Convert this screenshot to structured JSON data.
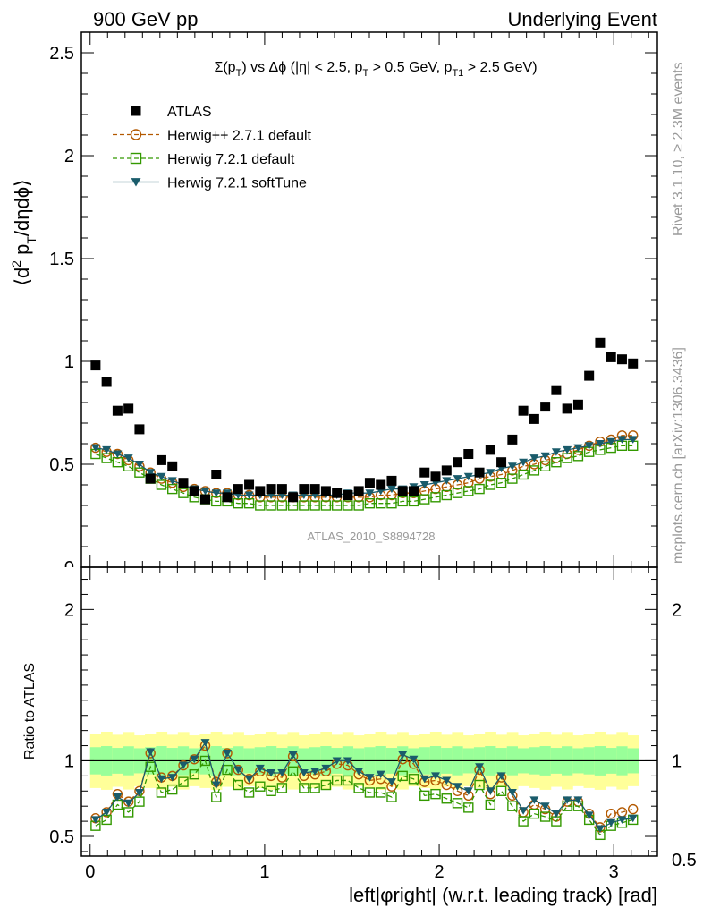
{
  "header": {
    "left": "900 GeV pp",
    "right": "Underlying Event"
  },
  "side": {
    "rivet": "Rivet 3.1.10, ≥ 2.3M events",
    "mcplots": "mcplots.cern.ch [arXiv:1306.3436]"
  },
  "chart_data": [
    {
      "type": "scatter",
      "title": "Σ(p_T) vs Δφ (|η| < 2.5, p_T > 0.5 GeV, p_T1 > 2.5 GeV)",
      "ylabel": "⟨d² p_T/dηdφ⟩",
      "watermark": "ATLAS_2010_S8894728",
      "ylim": [
        0,
        2.6
      ],
      "xlim": [
        -0.05,
        3.25
      ],
      "yticks": [
        0.5,
        1,
        1.5,
        2,
        2.5
      ],
      "ytick_labels": [
        "0.5",
        "1",
        "1.5",
        "2",
        "2.5"
      ],
      "legend_position": "top-left",
      "x": [
        0.0314,
        0.0942,
        0.157,
        0.2199,
        0.2827,
        0.3456,
        0.4084,
        0.4712,
        0.5341,
        0.5969,
        0.6597,
        0.7226,
        0.7854,
        0.8482,
        0.9111,
        0.9739,
        1.0367,
        1.0996,
        1.1624,
        1.2252,
        1.2881,
        1.3509,
        1.4137,
        1.4766,
        1.5394,
        1.6022,
        1.6651,
        1.7279,
        1.7907,
        1.8536,
        1.9164,
        1.9792,
        2.0421,
        2.1049,
        2.1677,
        2.2306,
        2.2934,
        2.3562,
        2.4191,
        2.4819,
        2.5447,
        2.6076,
        2.6704,
        2.7332,
        2.7961,
        2.8589,
        2.9217,
        2.9846,
        3.0474,
        3.1102
      ],
      "series": [
        {
          "name": "ATLAS",
          "marker": "square-filled",
          "color": "#000000",
          "values": [
            0.98,
            0.9,
            0.76,
            0.77,
            0.67,
            0.43,
            0.52,
            0.49,
            0.41,
            0.37,
            0.33,
            0.45,
            0.34,
            0.38,
            0.4,
            0.37,
            0.38,
            0.38,
            0.34,
            0.38,
            0.38,
            0.37,
            0.36,
            0.35,
            0.37,
            0.41,
            0.4,
            0.42,
            0.37,
            0.37,
            0.46,
            0.44,
            0.47,
            0.51,
            0.55,
            0.46,
            0.57,
            0.51,
            0.62,
            0.76,
            0.72,
            0.78,
            0.86,
            0.77,
            0.79,
            0.93,
            1.09,
            1.02,
            1.01,
            0.99
          ]
        },
        {
          "name": "Herwig++ 2.7.1 default",
          "marker": "circle-open",
          "line": "dashed",
          "color": "#b35900",
          "values": [
            0.58,
            0.56,
            0.55,
            0.52,
            0.49,
            0.46,
            0.43,
            0.41,
            0.39,
            0.38,
            0.37,
            0.36,
            0.36,
            0.35,
            0.35,
            0.34,
            0.34,
            0.34,
            0.34,
            0.34,
            0.34,
            0.34,
            0.34,
            0.34,
            0.34,
            0.34,
            0.35,
            0.35,
            0.36,
            0.36,
            0.37,
            0.38,
            0.39,
            0.4,
            0.41,
            0.43,
            0.44,
            0.45,
            0.47,
            0.49,
            0.5,
            0.52,
            0.53,
            0.55,
            0.57,
            0.59,
            0.61,
            0.62,
            0.64,
            0.64
          ]
        },
        {
          "name": "Herwig 7.2.1 default",
          "marker": "square-open",
          "line": "dashed",
          "color": "#339900",
          "values": [
            0.55,
            0.53,
            0.51,
            0.49,
            0.46,
            0.43,
            0.4,
            0.38,
            0.36,
            0.34,
            0.33,
            0.32,
            0.32,
            0.31,
            0.31,
            0.3,
            0.3,
            0.3,
            0.3,
            0.3,
            0.3,
            0.3,
            0.3,
            0.3,
            0.3,
            0.31,
            0.31,
            0.31,
            0.32,
            0.32,
            0.33,
            0.34,
            0.35,
            0.36,
            0.37,
            0.38,
            0.4,
            0.41,
            0.43,
            0.45,
            0.47,
            0.49,
            0.51,
            0.53,
            0.54,
            0.56,
            0.57,
            0.58,
            0.59,
            0.59
          ]
        },
        {
          "name": "Herwig 7.2.1 softTune",
          "marker": "triangle-down-filled",
          "line": "solid",
          "color": "#1a5c6b",
          "values": [
            0.58,
            0.57,
            0.55,
            0.53,
            0.5,
            0.46,
            0.44,
            0.42,
            0.4,
            0.38,
            0.37,
            0.36,
            0.36,
            0.35,
            0.35,
            0.35,
            0.35,
            0.35,
            0.35,
            0.35,
            0.35,
            0.35,
            0.35,
            0.36,
            0.36,
            0.36,
            0.37,
            0.38,
            0.38,
            0.39,
            0.4,
            0.41,
            0.42,
            0.43,
            0.44,
            0.45,
            0.46,
            0.48,
            0.49,
            0.51,
            0.53,
            0.54,
            0.56,
            0.57,
            0.58,
            0.59,
            0.6,
            0.61,
            0.62,
            0.62
          ]
        }
      ]
    },
    {
      "type": "scatter",
      "ylabel": "Ratio to ATLAS",
      "xlabel": "left|φright| (w.r.t. leading track) [rad]",
      "ylim": [
        0.37,
        2.28
      ],
      "xlim": [
        -0.05,
        3.25
      ],
      "yticks": [
        0.5,
        1,
        2
      ],
      "ytick_labels": [
        "0.5",
        "1",
        "2"
      ],
      "xticks": [
        0,
        1,
        2,
        3
      ],
      "xtick_labels": [
        "0",
        "1",
        "2",
        "3"
      ],
      "band_inner": 0.09,
      "band_outer": 0.18,
      "band_inner_color": "#99ff99",
      "band_outer_color": "#ffff99",
      "reference": 1,
      "x": [
        0.0314,
        0.0942,
        0.157,
        0.2199,
        0.2827,
        0.3456,
        0.4084,
        0.4712,
        0.5341,
        0.5969,
        0.6597,
        0.7226,
        0.7854,
        0.8482,
        0.9111,
        0.9739,
        1.0367,
        1.0996,
        1.1624,
        1.2252,
        1.2881,
        1.3509,
        1.4137,
        1.4766,
        1.5394,
        1.6022,
        1.6651,
        1.7279,
        1.7907,
        1.8536,
        1.9164,
        1.9792,
        2.0421,
        2.1049,
        2.1677,
        2.2306,
        2.2934,
        2.3562,
        2.4191,
        2.4819,
        2.5447,
        2.6076,
        2.6704,
        2.7332,
        2.7961,
        2.8589,
        2.9217,
        2.9846,
        3.0474,
        3.1102
      ],
      "series": [
        {
          "name": "Herwig++ 2.7.1 default",
          "color": "#b35900",
          "values": [
            0.62,
            0.66,
            0.78,
            0.73,
            0.8,
            1.05,
            0.89,
            0.9,
            0.97,
            1.01,
            1.1,
            0.86,
            1.05,
            0.94,
            0.88,
            0.93,
            0.9,
            0.89,
            1.03,
            0.9,
            0.91,
            0.93,
            0.98,
            0.97,
            0.91,
            0.87,
            0.88,
            0.83,
            1.01,
            0.98,
            0.86,
            0.87,
            0.84,
            0.8,
            0.77,
            0.94,
            0.78,
            0.89,
            0.77,
            0.66,
            0.71,
            0.68,
            0.63,
            0.73,
            0.73,
            0.65,
            0.56,
            0.65,
            0.66,
            0.68
          ]
        },
        {
          "name": "Herwig 7.2.1 default",
          "color": "#339900",
          "values": [
            0.57,
            0.61,
            0.71,
            0.66,
            0.73,
            0.96,
            0.79,
            0.81,
            0.86,
            0.91,
            1.0,
            0.76,
            0.94,
            0.84,
            0.79,
            0.83,
            0.8,
            0.82,
            0.93,
            0.82,
            0.82,
            0.84,
            0.87,
            0.87,
            0.82,
            0.79,
            0.79,
            0.76,
            0.9,
            0.88,
            0.77,
            0.78,
            0.75,
            0.72,
            0.69,
            0.84,
            0.71,
            0.8,
            0.7,
            0.6,
            0.65,
            0.63,
            0.6,
            0.7,
            0.7,
            0.61,
            0.51,
            0.57,
            0.59,
            0.61
          ]
        },
        {
          "name": "Herwig 7.2.1 softTune",
          "color": "#1a5c6b",
          "values": [
            0.61,
            0.66,
            0.76,
            0.72,
            0.79,
            1.06,
            0.88,
            0.89,
            0.97,
            1.01,
            1.12,
            0.84,
            1.05,
            0.94,
            0.88,
            0.95,
            0.92,
            0.92,
            1.04,
            0.92,
            0.93,
            0.95,
            1.0,
            1.0,
            0.93,
            0.89,
            0.91,
            0.86,
            1.04,
            1.01,
            0.88,
            0.9,
            0.87,
            0.83,
            0.8,
            0.96,
            0.8,
            0.9,
            0.79,
            0.67,
            0.74,
            0.7,
            0.65,
            0.74,
            0.74,
            0.64,
            0.55,
            0.59,
            0.61,
            0.62
          ]
        }
      ]
    }
  ]
}
